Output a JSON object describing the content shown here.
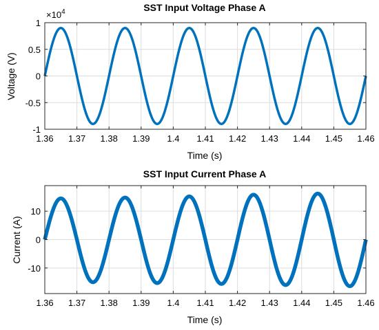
{
  "chart_data": [
    {
      "type": "line",
      "title": "SST Input Voltage Phase A",
      "xlabel": "Time (s)",
      "ylabel": "Voltage (V)",
      "exponent_label": "×10",
      "exponent_power": "4",
      "xlim": [
        1.36,
        1.46
      ],
      "ylim": [
        -1,
        1
      ],
      "xticks": [
        "1.36",
        "1.37",
        "1.38",
        "1.39",
        "1.4",
        "1.41",
        "1.42",
        "1.43",
        "1.44",
        "1.45",
        "1.46"
      ],
      "yticks": [
        "1",
        "0.5",
        "0",
        "-0.5",
        "-1"
      ],
      "ytick_values": [
        1,
        0.5,
        0,
        -0.5,
        -1
      ],
      "grid": true,
      "color": "#0072BD",
      "series": [
        {
          "waveform": "sine",
          "amplitude": 0.9,
          "frequency_hz": 50,
          "peak_times": [
            1.365,
            1.385,
            1.405,
            1.425,
            1.445
          ],
          "trough_times": [
            1.375,
            1.395,
            1.415,
            1.435,
            1.455
          ],
          "peak_values": [
            0.9,
            0.9,
            0.9,
            0.9,
            0.9
          ],
          "trough_values": [
            -0.9,
            -0.9,
            -0.9,
            -0.9,
            -0.9
          ]
        }
      ]
    },
    {
      "type": "line",
      "title": "SST Input Current Phase A",
      "xlabel": "Time (s)",
      "ylabel": "Current (A)",
      "xlim": [
        1.36,
        1.46
      ],
      "ylim": [
        -19,
        19
      ],
      "xticks": [
        "1.36",
        "1.37",
        "1.38",
        "1.39",
        "1.4",
        "1.41",
        "1.42",
        "1.43",
        "1.44",
        "1.45",
        "1.46"
      ],
      "yticks": [
        "10",
        "0",
        "-10"
      ],
      "ytick_values": [
        10,
        0,
        -10
      ],
      "grid": true,
      "color": "#0072BD",
      "series": [
        {
          "waveform": "sine",
          "frequency_hz": 50,
          "peak_times": [
            1.365,
            1.385,
            1.405,
            1.425,
            1.445
          ],
          "trough_times": [
            1.375,
            1.395,
            1.415,
            1.435,
            1.455
          ],
          "peak_values": [
            14.5,
            14.8,
            15.2,
            15.8,
            16.2
          ],
          "trough_values": [
            -15.0,
            -15.3,
            -15.6,
            -16.0,
            -16.4
          ]
        }
      ]
    }
  ]
}
